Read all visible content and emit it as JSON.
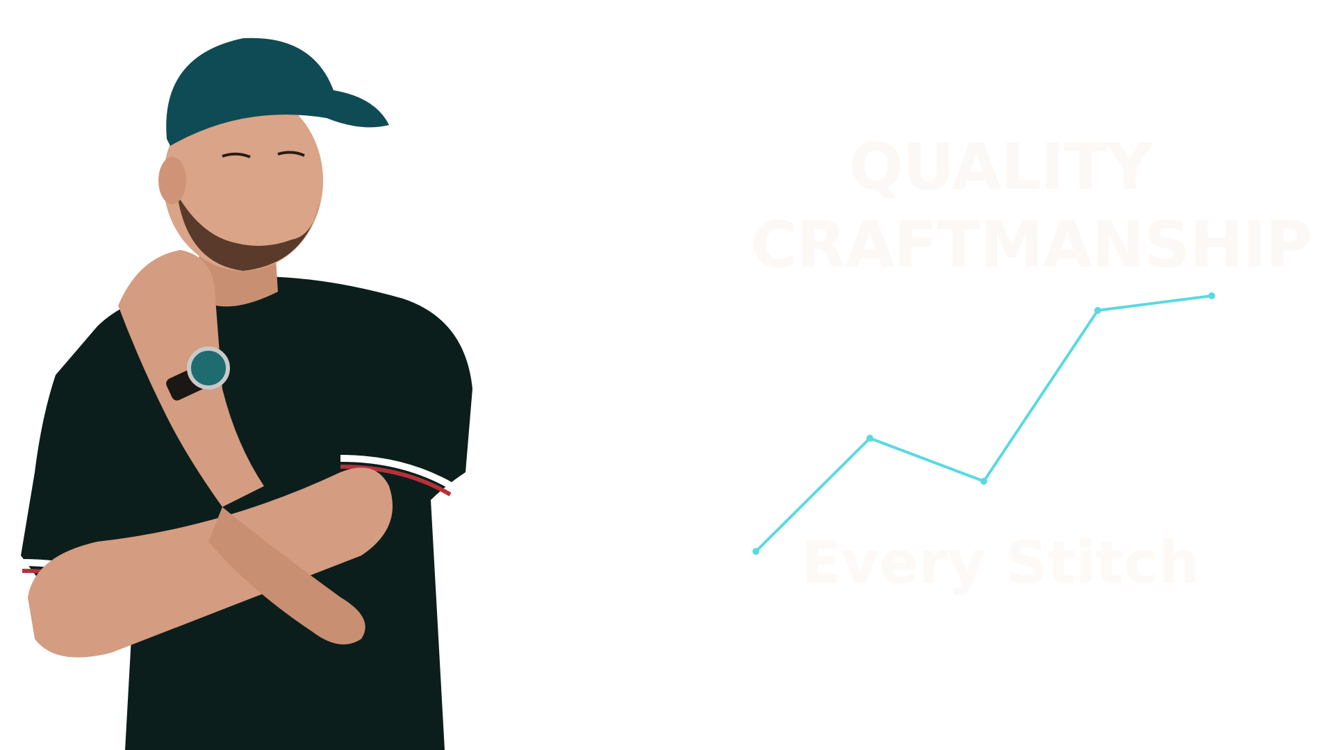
{
  "hero": {
    "headline_line1": "QUALITY",
    "headline_line2": "CRAFTMANSHIP",
    "tagline": "Every Stitch",
    "headline_color": "#fcf8f5",
    "accent_color": "#5ad9e0"
  },
  "model": {
    "cap_color": "#0f4b55",
    "shirt_color": "#0c1e1c",
    "skin_color": "#d9a487",
    "watch_face_color": "#1e6b70"
  }
}
